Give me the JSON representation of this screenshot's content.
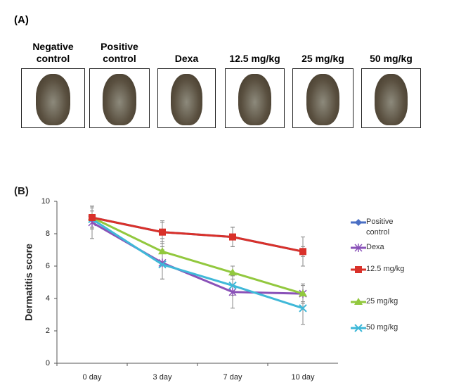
{
  "panel_a": {
    "label": "(A)",
    "groups": [
      "Negative control",
      "Positive control",
      "Dexa",
      "12.5 mg/kg",
      "25 mg/kg",
      "50 mg/kg"
    ]
  },
  "chart_data": {
    "type": "line",
    "panel_label": "(B)",
    "y_label": "Dermatitis score",
    "categories": [
      "0 day",
      "3 day",
      "7 day",
      "10 day"
    ],
    "ylim": [
      0,
      10
    ],
    "yticks": [
      0,
      2,
      4,
      6,
      8,
      10
    ],
    "series": [
      {
        "name": "Positive control",
        "color": "#4a6fc4",
        "marker": "diamond",
        "values": [
          9.0,
          8.1,
          7.8,
          6.9
        ],
        "errors": [
          0.6,
          0.6,
          0.6,
          0.9
        ]
      },
      {
        "name": "Dexa",
        "color": "#8a52b8",
        "marker": "star",
        "values": [
          8.7,
          6.2,
          4.4,
          4.3
        ],
        "errors": [
          1.0,
          1.0,
          1.0,
          0.5
        ]
      },
      {
        "name": "12.5 mg/kg",
        "color": "#d9312a",
        "marker": "square",
        "values": [
          9.0,
          8.1,
          7.8,
          6.9
        ],
        "errors": [
          0.7,
          0.7,
          0.6,
          0.3
        ]
      },
      {
        "name": "25 mg/kg",
        "color": "#92c83e",
        "marker": "triangle",
        "values": [
          9.0,
          6.9,
          5.6,
          4.3
        ],
        "errors": [
          0.7,
          0.8,
          0.4,
          0.6
        ]
      },
      {
        "name": "50 mg/kg",
        "color": "#3fb8d8",
        "marker": "x",
        "values": [
          8.9,
          6.1,
          4.8,
          3.4
        ],
        "errors": [
          0.5,
          0.9,
          0.6,
          1.0
        ]
      }
    ]
  }
}
